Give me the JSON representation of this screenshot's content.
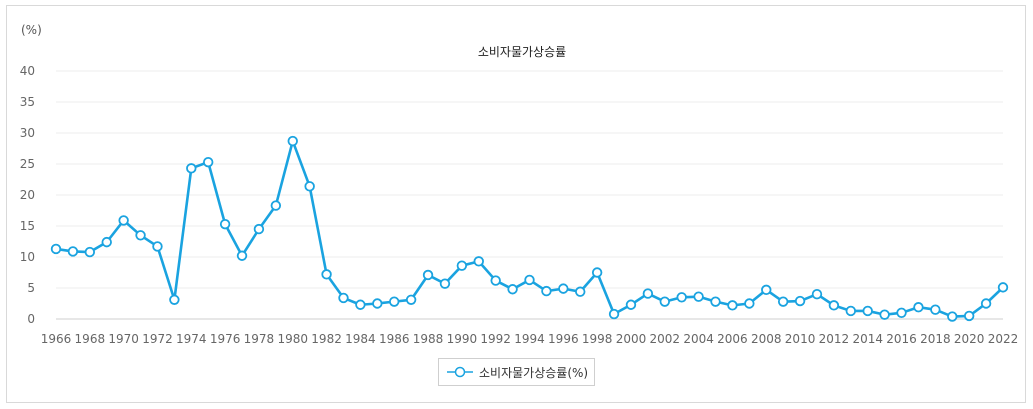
{
  "chart_data": {
    "type": "line",
    "title": "소비자물가상승률",
    "unit_label": "(%)",
    "ylim": [
      0,
      40
    ],
    "y_ticks": [
      0,
      5,
      10,
      15,
      20,
      25,
      30,
      35,
      40
    ],
    "x_tick_labels": [
      "1966",
      "1968",
      "1970",
      "1972",
      "1974",
      "1976",
      "1978",
      "1980",
      "1982",
      "1984",
      "1986",
      "1988",
      "1990",
      "1992",
      "1994",
      "1996",
      "1998",
      "2000",
      "2002",
      "2004",
      "2006",
      "2008",
      "2010",
      "2012",
      "2014",
      "2016",
      "2018",
      "2020",
      "2022"
    ],
    "grid": true,
    "legend_position": "bottom",
    "series": [
      {
        "name": "소비자물가상승률(%)",
        "color": "#1aa3e0",
        "x": [
          1966,
          1967,
          1968,
          1969,
          1970,
          1971,
          1972,
          1973,
          1974,
          1975,
          1976,
          1977,
          1978,
          1979,
          1980,
          1981,
          1982,
          1983,
          1984,
          1985,
          1986,
          1987,
          1988,
          1989,
          1990,
          1991,
          1992,
          1993,
          1994,
          1995,
          1996,
          1997,
          1998,
          1999,
          2000,
          2001,
          2002,
          2003,
          2004,
          2005,
          2006,
          2007,
          2008,
          2009,
          2010,
          2011,
          2012,
          2013,
          2014,
          2015,
          2016,
          2017,
          2018,
          2019,
          2020,
          2021,
          2022
        ],
        "values": [
          11.3,
          10.9,
          10.8,
          12.4,
          15.9,
          13.5,
          11.7,
          3.1,
          24.3,
          25.3,
          15.3,
          10.2,
          14.5,
          18.3,
          28.7,
          21.4,
          7.2,
          3.4,
          2.3,
          2.5,
          2.8,
          3.1,
          7.1,
          5.7,
          8.6,
          9.3,
          6.2,
          4.8,
          6.3,
          4.5,
          4.9,
          4.4,
          7.5,
          0.8,
          2.3,
          4.1,
          2.8,
          3.5,
          3.6,
          2.8,
          2.2,
          2.5,
          4.7,
          2.8,
          2.9,
          4.0,
          2.2,
          1.3,
          1.3,
          0.7,
          1.0,
          1.9,
          1.5,
          0.4,
          0.5,
          2.5,
          5.1
        ]
      }
    ]
  }
}
